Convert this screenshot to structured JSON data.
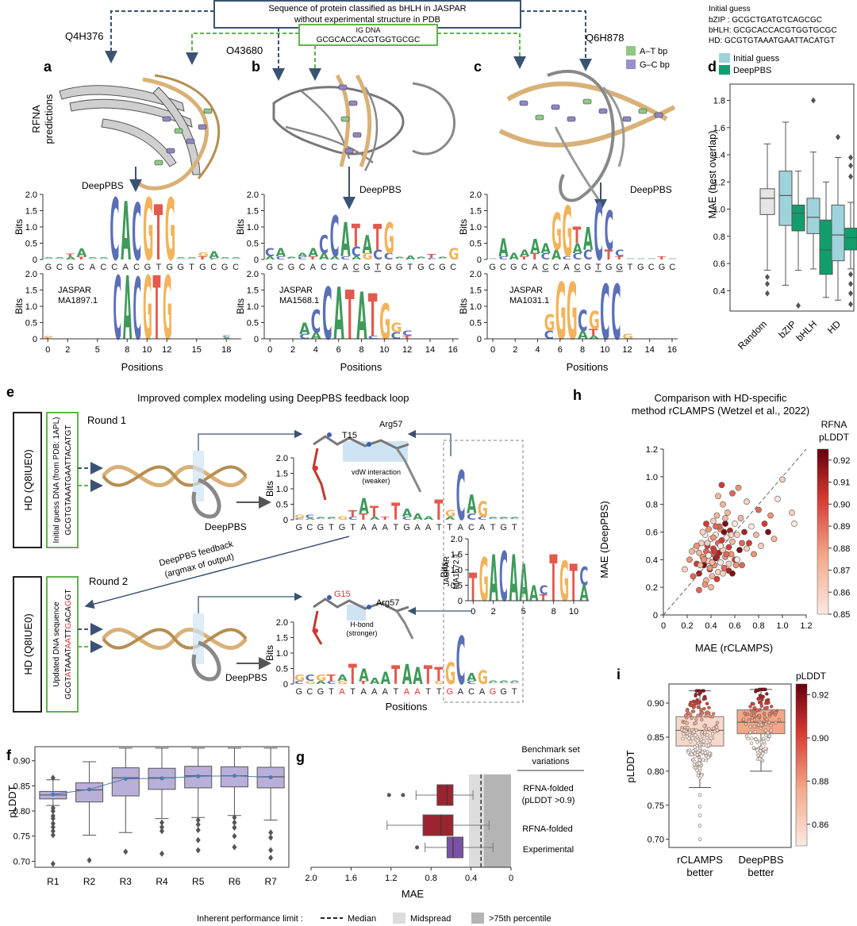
{
  "top": {
    "box_line1": "Sequence of protein classified as bHLH in JASPAR",
    "box_line2": "without experimental structure in PDB",
    "ig_label": "IG DNA",
    "ig_seq": "GCGCACCACGTGGTGCGC",
    "protein_a": "Q4H376",
    "protein_b": "O43680",
    "protein_c": "Q6H878",
    "initial_guess_title": "Initial guess",
    "initial_guess_bzip": "bZIP : GCGCTGATGTCAGCGC",
    "initial_guess_bhlh": "bHLH: GCGCACCACGTGGTGCGC",
    "initial_guess_hd": "HD: GCGTGTAAATGAATTACATGT",
    "legend_at": "A–T bp",
    "legend_gc": "G–C bp",
    "rfna_label_1": "RFNA",
    "rfna_label_2": "predictions",
    "deeppbs": "DeepPBS"
  },
  "panel_a": {
    "letter": "a",
    "seq": [
      "G",
      "C",
      "G",
      "C",
      "A",
      "C",
      "C",
      "A",
      "C",
      "G",
      "T",
      "G",
      "G",
      "T",
      "G",
      "C",
      "G",
      "C"
    ],
    "jaspar": "JASPAR",
    "jaspar_id": "MA1897.1",
    "xticks": [
      "0",
      "2",
      "5",
      "8",
      "10",
      "12",
      "15",
      "18"
    ],
    "xlabel": "Positions"
  },
  "panel_b": {
    "letter": "b",
    "seq": [
      "G",
      "C",
      "G",
      "C",
      "A",
      "C",
      "C",
      "A",
      "C",
      "G",
      "T",
      "G",
      "G",
      "T",
      "G",
      "C",
      "G",
      "C"
    ],
    "jaspar": "JASPAR",
    "jaspar_id": "MA1568.1",
    "xticks": [
      "0",
      "2",
      "4",
      "6",
      "8",
      "10",
      "12",
      "14",
      "16"
    ],
    "xlabel": "Positions"
  },
  "panel_c": {
    "letter": "c",
    "seq": [
      "G",
      "C",
      "G",
      "C",
      "A",
      "C",
      "C",
      "A",
      "C",
      "G",
      "T",
      "G",
      "G",
      "T",
      "G",
      "C",
      "G",
      "C"
    ],
    "jaspar": "JASPAR",
    "jaspar_id": "MA1031.1",
    "xticks": [
      "0",
      "2",
      "4",
      "6",
      "8",
      "10",
      "12",
      "14",
      "16"
    ],
    "xlabel": "Positions"
  },
  "bits": {
    "label": "Bits",
    "ticks": [
      "0",
      "0.5",
      "1.0",
      "1.5",
      "2.0"
    ]
  },
  "panel_d": {
    "letter": "d",
    "legend_initial": "Initial guess",
    "legend_deeppbs": "DeepPBS",
    "ylabel": "MAE (best overlap)",
    "yticks": [
      "0.4",
      "0.6",
      "0.8",
      "1.0",
      "1.2",
      "1.4",
      "1.6",
      "1.8"
    ],
    "categories": [
      "Random",
      "bZIP",
      "bHLH",
      "HD"
    ],
    "colors": {
      "initial": "#9fd3dc",
      "deeppbs": "#119e6c",
      "random": "#e5e5e5"
    }
  },
  "panel_e": {
    "letter": "e",
    "title": "Improved complex modeling using DeepPBS feedback loop",
    "round1": "Round 1",
    "round2": "Round 2",
    "hd1": "HD (Q8IUE0)",
    "hd2": "HD (Q8IUE0)",
    "init_guess_l1": "Initial guess DNA (from PDB: 1APL)",
    "init_guess_l2": "GCGTGTAAATGAATTACATGT",
    "updated_l1": "Updated DNA sequence",
    "updated_l2": "GCGTATAAATAATTGACAGGT",
    "feedback_l1": "DeepPBS feedback",
    "feedback_l2": "(argmax of output)",
    "t15": "T15",
    "g15": "G15",
    "arg57": "Arg57",
    "vdw_l1": "vdW interaction",
    "vdw_l2": "(weaker)",
    "hbond_l1": "H-bond",
    "hbond_l2": "(stronger)",
    "seq1": [
      "G",
      "C",
      "G",
      "T",
      "G",
      "T",
      "A",
      "A",
      "A",
      "T",
      "G",
      "A",
      "A",
      "T",
      "T",
      "A",
      "C",
      "A",
      "T",
      "G",
      "T"
    ],
    "seq2": [
      "G",
      "C",
      "G",
      "T",
      "A",
      "T",
      "A",
      "A",
      "A",
      "T",
      "A",
      "A",
      "T",
      "T",
      "G",
      "A",
      "C",
      "A",
      "G",
      "G",
      "T"
    ],
    "jaspar": "JASPAR",
    "jaspar_id": "MA1572.1",
    "jaspar_xticks": [
      "0",
      "2",
      "5",
      "8",
      "10"
    ],
    "xlabel": "Positions"
  },
  "panel_f": {
    "letter": "f",
    "ylabel": "pLDDT",
    "yticks": [
      "0.70",
      "0.75",
      "0.80",
      "0.85",
      "0.90"
    ],
    "categories": [
      "R1",
      "R2",
      "R3",
      "R4",
      "R5",
      "R6",
      "R7"
    ]
  },
  "panel_g": {
    "letter": "g",
    "xlabel": "MAE",
    "xticks": [
      "2.0",
      "1.6",
      "1.2",
      "0.8",
      "0.4",
      "0"
    ],
    "header_l1": "Benchmark set",
    "header_l2": "variations",
    "row1_l1": "RFNA-folded",
    "row1_l2": "(pLDDT >0.9)",
    "row2": "RFNA-folded",
    "row3": "Experimental"
  },
  "panel_h": {
    "letter": "h",
    "title_l1": "Comparison with HD-specific",
    "title_l2": "method rCLAMPS (Wetzel et al., 2022)",
    "xlabel": "MAE (rCLAMPS)",
    "ylabel": "MAE (DeepPBS)",
    "ticks": [
      "0",
      "0.2",
      "0.4",
      "0.6",
      "0.8",
      "1.0",
      "1.2"
    ],
    "cbar_title_l1": "RFNA",
    "cbar_title_l2": "pLDDT",
    "cbar_ticks": [
      "0.85",
      "0.86",
      "0.87",
      "0.88",
      "0.89",
      "0.90",
      "0.91",
      "0.92"
    ]
  },
  "panel_i": {
    "letter": "i",
    "ylabel": "pLDDT",
    "yticks": [
      "0.70",
      "0.75",
      "0.80",
      "0.85",
      "0.90"
    ],
    "cat1_l1": "rCLAMPS",
    "cat1_l2": "better",
    "cat2_l1": "DeepPBS",
    "cat2_l2": "better",
    "cbar_title": "pLDDT",
    "cbar_ticks": [
      "0.86",
      "0.88",
      "0.90",
      "0.92"
    ]
  },
  "bottom_legend": {
    "title": "Inherent performance limit :",
    "median": "Median",
    "midspread": "Midspread",
    "p75": ">75th percentile"
  },
  "chart_data": [
    {
      "type": "box",
      "id": "d",
      "title": "",
      "xlabel": "",
      "ylabel": "MAE (best overlap)",
      "ylim": [
        0.25,
        1.92
      ],
      "categories": [
        "Random",
        "bZIP",
        "bHLH",
        "HD"
      ],
      "series": [
        {
          "name": "Random",
          "values": [
            {
              "cat": "Random",
              "q1": 0.96,
              "med": 1.08,
              "q3": 1.15,
              "lo": 0.55,
              "hi": 1.48,
              "out": [
                0.5,
                0.45,
                0.38
              ]
            }
          ]
        },
        {
          "name": "Initial guess",
          "values": [
            {
              "cat": "bZIP",
              "q1": 0.88,
              "med": 1.1,
              "q3": 1.28,
              "lo": 0.44,
              "hi": 1.64,
              "out": []
            },
            {
              "cat": "bHLH",
              "q1": 0.82,
              "med": 0.94,
              "q3": 1.08,
              "lo": 0.56,
              "hi": 1.42,
              "out": [
                1.8
              ]
            },
            {
              "cat": "HD",
              "q1": 0.62,
              "med": 0.81,
              "q3": 1.03,
              "lo": 0.33,
              "hi": 1.38,
              "out": [
                1.53
              ]
            }
          ]
        },
        {
          "name": "DeepPBS",
          "values": [
            {
              "cat": "bZIP",
              "q1": 0.84,
              "med": 0.97,
              "q3": 1.03,
              "lo": 0.55,
              "hi": 1.28,
              "out": [
                0.29
              ]
            },
            {
              "cat": "bHLH",
              "q1": 0.52,
              "med": 0.7,
              "q3": 0.92,
              "lo": 0.35,
              "hi": 1.2,
              "out": []
            },
            {
              "cat": "HD",
              "q1": 0.7,
              "med": 0.79,
              "q3": 0.86,
              "lo": 0.56,
              "hi": 1.05,
              "out": [
                1.38,
                1.32,
                1.24,
                0.52,
                0.45,
                0.38,
                0.3
              ]
            }
          ]
        }
      ]
    },
    {
      "type": "box",
      "id": "f",
      "ylabel": "pLDDT",
      "ylim": [
        0.688,
        0.928
      ],
      "categories": [
        "R1",
        "R2",
        "R3",
        "R4",
        "R5",
        "R6",
        "R7"
      ],
      "series": [
        {
          "name": "pLDDT",
          "values": [
            {
              "cat": "R1",
              "q1": 0.824,
              "med": 0.832,
              "q3": 0.839,
              "lo": 0.811,
              "hi": 0.862,
              "mean": 0.833,
              "out": [
                0.866,
                0.806,
                0.8,
                0.79,
                0.785,
                0.775,
                0.768,
                0.76,
                0.752,
                0.695
              ]
            },
            {
              "cat": "R2",
              "q1": 0.818,
              "med": 0.842,
              "q3": 0.856,
              "lo": 0.752,
              "hi": 0.898,
              "mean": 0.843,
              "out": [
                0.702
              ]
            },
            {
              "cat": "R3",
              "q1": 0.83,
              "med": 0.866,
              "q3": 0.886,
              "lo": 0.757,
              "hi": 0.925,
              "mean": 0.864,
              "out": [
                0.719
              ]
            },
            {
              "cat": "R4",
              "q1": 0.843,
              "med": 0.866,
              "q3": 0.885,
              "lo": 0.785,
              "hi": 0.925,
              "mean": 0.865,
              "out": [
                0.777,
                0.768,
                0.76,
                0.715
              ]
            },
            {
              "cat": "R5",
              "q1": 0.846,
              "med": 0.87,
              "q3": 0.889,
              "lo": 0.787,
              "hi": 0.925,
              "mean": 0.869,
              "out": [
                0.782,
                0.773,
                0.762,
                0.742,
                0.722
              ]
            },
            {
              "cat": "R6",
              "q1": 0.848,
              "med": 0.87,
              "q3": 0.888,
              "lo": 0.791,
              "hi": 0.925,
              "mean": 0.87,
              "out": [
                0.787,
                0.777,
                0.767,
                0.75,
                0.728
              ]
            },
            {
              "cat": "R7",
              "q1": 0.846,
              "med": 0.868,
              "q3": 0.887,
              "lo": 0.782,
              "hi": 0.925,
              "mean": 0.867,
              "out": [
                0.757,
                0.747,
                0.722,
                0.707
              ]
            }
          ]
        }
      ]
    },
    {
      "type": "box",
      "id": "g",
      "xlabel": "MAE",
      "xlim": [
        2.0,
        0
      ],
      "categories": [
        "RFNA-folded (pLDDT >0.9)",
        "RFNA-folded",
        "Experimental"
      ],
      "series": [
        {
          "name": "MAE",
          "values": [
            {
              "cat": "RFNA-folded (pLDDT >0.9)",
              "q1": 0.58,
              "med": 0.64,
              "q3": 0.74,
              "lo": 0.38,
              "hi": 0.95,
              "out": [
                1.08,
                1.22
              ],
              "color": "#9a2530"
            },
            {
              "cat": "RFNA-folded",
              "q1": 0.58,
              "med": 0.7,
              "q3": 0.88,
              "lo": 0.22,
              "hi": 1.24,
              "out": [],
              "color": "#9a2530"
            },
            {
              "cat": "Experimental",
              "q1": 0.48,
              "med": 0.58,
              "q3": 0.64,
              "lo": 0.18,
              "hi": 0.86,
              "out": [
                0.94
              ],
              "color": "#7a52a3"
            }
          ]
        }
      ],
      "performance_limit": {
        "median": 0.3,
        "midspread": [
          0.27,
          0.42
        ],
        "p75": [
          0,
          0.27
        ]
      }
    },
    {
      "type": "scatter",
      "id": "h",
      "title": "Comparison with HD-specific method rCLAMPS (Wetzel et al., 2022)",
      "xlabel": "MAE (rCLAMPS)",
      "ylabel": "MAE (DeepPBS)",
      "xlim": [
        0,
        1.2
      ],
      "ylim": [
        0,
        1.2
      ],
      "colorbar": {
        "label": "RFNA pLDDT",
        "range": [
          0.85,
          0.925
        ]
      },
      "x": [
        0.18,
        0.22,
        0.25,
        0.27,
        0.28,
        0.3,
        0.3,
        0.32,
        0.33,
        0.34,
        0.35,
        0.36,
        0.36,
        0.37,
        0.38,
        0.38,
        0.39,
        0.4,
        0.4,
        0.41,
        0.42,
        0.42,
        0.43,
        0.44,
        0.44,
        0.45,
        0.46,
        0.46,
        0.47,
        0.48,
        0.48,
        0.49,
        0.5,
        0.5,
        0.51,
        0.52,
        0.52,
        0.53,
        0.54,
        0.55,
        0.55,
        0.56,
        0.57,
        0.58,
        0.58,
        0.6,
        0.6,
        0.62,
        0.63,
        0.64,
        0.65,
        0.66,
        0.68,
        0.7,
        0.72,
        0.74,
        0.76,
        0.78,
        0.8,
        0.82,
        0.85,
        0.88,
        0.9,
        0.93,
        0.96,
        1.0,
        1.08,
        1.1,
        0.3,
        0.35,
        0.4,
        0.45,
        0.5,
        0.55,
        0.38,
        0.42,
        0.47,
        0.52,
        0.33,
        0.36,
        0.28,
        0.24,
        0.58,
        0.62,
        0.66,
        0.7,
        0.45,
        0.41,
        0.39,
        0.43,
        0.48,
        0.53,
        0.57,
        0.61,
        0.46,
        0.49,
        0.37,
        0.44,
        0.51,
        0.34,
        0.31
      ],
      "y": [
        0.33,
        0.4,
        0.28,
        0.48,
        0.37,
        0.45,
        0.3,
        0.52,
        0.42,
        0.36,
        0.58,
        0.46,
        0.25,
        0.5,
        0.39,
        0.62,
        0.33,
        0.55,
        0.44,
        0.28,
        0.68,
        0.48,
        0.36,
        0.58,
        0.41,
        0.72,
        0.52,
        0.31,
        0.45,
        0.62,
        0.38,
        0.54,
        0.8,
        0.47,
        0.34,
        0.66,
        0.42,
        0.56,
        0.74,
        0.49,
        0.37,
        0.61,
        0.44,
        0.88,
        0.53,
        0.66,
        0.4,
        0.58,
        0.92,
        0.47,
        0.7,
        0.36,
        0.6,
        0.82,
        0.52,
        0.64,
        0.44,
        0.58,
        0.76,
        0.5,
        0.66,
        0.6,
        0.72,
        0.55,
        0.84,
        0.98,
        0.74,
        0.66,
        0.18,
        0.22,
        0.2,
        0.26,
        0.3,
        0.32,
        0.43,
        0.56,
        0.64,
        0.7,
        0.6,
        0.66,
        0.5,
        0.46,
        0.3,
        0.4,
        0.52,
        0.48,
        0.42,
        0.38,
        0.34,
        0.46,
        0.5,
        0.44,
        0.58,
        0.36,
        0.86,
        0.94,
        0.52,
        0.64,
        0.6,
        0.4,
        0.36
      ],
      "c": [
        0.86,
        0.88,
        0.89,
        0.85,
        0.9,
        0.87,
        0.91,
        0.86,
        0.88,
        0.92,
        0.85,
        0.89,
        0.87,
        0.9,
        0.86,
        0.88,
        0.91,
        0.85,
        0.89,
        0.87,
        0.86,
        0.9,
        0.88,
        0.85,
        0.92,
        0.87,
        0.89,
        0.86,
        0.91,
        0.88,
        0.85,
        0.9,
        0.87,
        0.86,
        0.89,
        0.92,
        0.88,
        0.85,
        0.87,
        0.9,
        0.86,
        0.91,
        0.88,
        0.89,
        0.87,
        0.85,
        0.9,
        0.86,
        0.88,
        0.92,
        0.87,
        0.89,
        0.91,
        0.86,
        0.9,
        0.85,
        0.88,
        0.87,
        0.89,
        0.86,
        0.9,
        0.92,
        0.88,
        0.87,
        0.85,
        0.86,
        0.86,
        0.85,
        0.89,
        0.88,
        0.87,
        0.9,
        0.86,
        0.91,
        0.85,
        0.88,
        0.89,
        0.87,
        0.86,
        0.9,
        0.88,
        0.87,
        0.92,
        0.85,
        0.89,
        0.86,
        0.91,
        0.87,
        0.88,
        0.9,
        0.85,
        0.89,
        0.86,
        0.88,
        0.87,
        0.9,
        0.86,
        0.89,
        0.92,
        0.88,
        0.87
      ]
    },
    {
      "type": "box-swarm",
      "id": "i",
      "ylabel": "pLDDT",
      "ylim": [
        0.688,
        0.928
      ],
      "categories": [
        "rCLAMPS better",
        "DeepPBS better"
      ],
      "series": [
        {
          "name": "pLDDT",
          "values": [
            {
              "cat": "rCLAMPS better",
              "q1": 0.837,
              "med": 0.86,
              "q3": 0.88,
              "lo": 0.776,
              "hi": 0.918,
              "out": [
                0.765,
                0.748,
                0.735,
                0.72,
                0.7
              ]
            },
            {
              "cat": "DeepPBS better",
              "q1": 0.855,
              "med": 0.872,
              "q3": 0.89,
              "lo": 0.8,
              "hi": 0.92,
              "out": []
            }
          ]
        }
      ],
      "colorbar": {
        "label": "pLDDT",
        "range": [
          0.85,
          0.925
        ]
      }
    }
  ]
}
